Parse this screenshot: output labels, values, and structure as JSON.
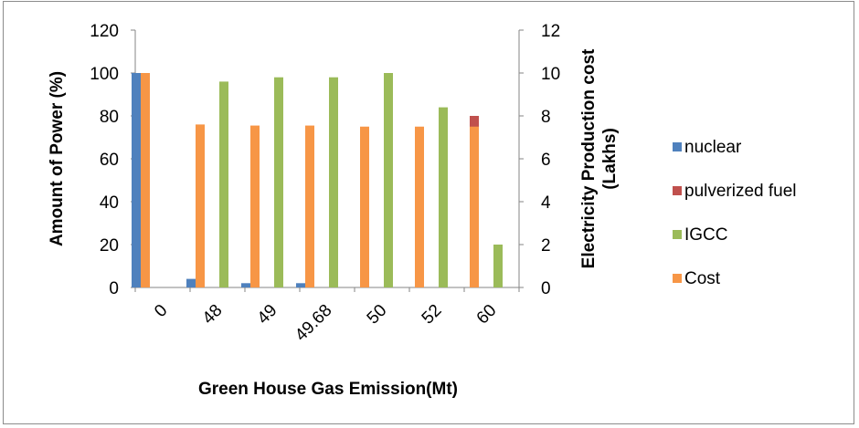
{
  "chart_data": {
    "type": "bar",
    "categories": [
      "0",
      "48",
      "49",
      "49.68",
      "50",
      "52",
      "60"
    ],
    "xlabel": "Green House Gas Emission(Mt)",
    "ylabel": "Amount of Power (%)",
    "y2label_line1": "Electricity Production cost",
    "y2label_line2": "(Lakhs)",
    "ylim": [
      0,
      120
    ],
    "y2lim": [
      0,
      12
    ],
    "yticks": [
      "0",
      "20",
      "40",
      "60",
      "80",
      "100",
      "120"
    ],
    "y2ticks": [
      "0",
      "2",
      "4",
      "6",
      "8",
      "10",
      "12"
    ],
    "grid": false,
    "legend_position": "right",
    "series": [
      {
        "name": "nuclear",
        "axis": "left",
        "color": "#4f81bd",
        "values": [
          100,
          4,
          2,
          2,
          0,
          0,
          0
        ]
      },
      {
        "name": "pulverized fuel",
        "axis": "left",
        "color": "#c0504d",
        "values": [
          0,
          0,
          0,
          0,
          0,
          0,
          80
        ]
      },
      {
        "name": "IGCC",
        "axis": "left",
        "color": "#9bbb59",
        "values": [
          0,
          96,
          98,
          98,
          100,
          84,
          20
        ]
      },
      {
        "name": "Cost",
        "axis": "right",
        "color": "#f79646",
        "values": [
          10,
          7.6,
          7.55,
          7.55,
          7.5,
          7.5,
          7.5
        ]
      }
    ]
  }
}
